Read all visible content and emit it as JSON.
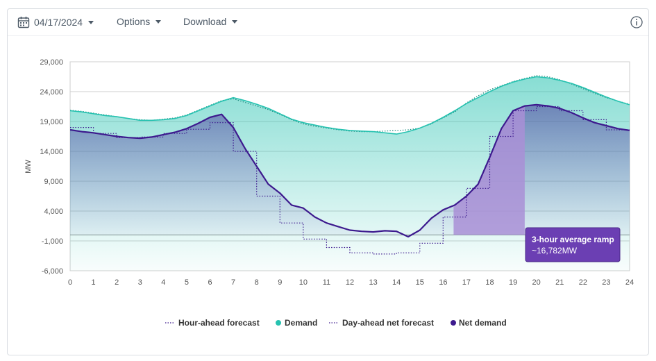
{
  "toolbar": {
    "date": "04/17/2024",
    "options_label": "Options",
    "download_label": "Download"
  },
  "colors": {
    "demand": "#26c2b0",
    "net_demand": "#3d1a8e",
    "ramp_fill": "#a98fd6",
    "tooltip_bg": "#6b3fb3"
  },
  "tooltip": {
    "title": "3-hour average ramp",
    "value": "~16,782MW"
  },
  "chart_data": {
    "type": "line",
    "xlabel": "",
    "ylabel": "MW",
    "xlim": [
      0,
      24
    ],
    "ylim": [
      -6000,
      29000
    ],
    "x_ticks": [
      "0",
      "1",
      "2",
      "3",
      "4",
      "5",
      "6",
      "7",
      "8",
      "9",
      "10",
      "11",
      "12",
      "13",
      "14",
      "15",
      "16",
      "17",
      "18",
      "19",
      "20",
      "21",
      "22",
      "23",
      "24"
    ],
    "y_ticks": [
      "29,000",
      "24,000",
      "19,000",
      "14,000",
      "9,000",
      "4,000",
      "-1,000",
      "-6,000"
    ],
    "y_tick_values": [
      29000,
      24000,
      19000,
      14000,
      9000,
      4000,
      -1000,
      -6000
    ],
    "ramp_window": [
      16.45,
      19.5
    ],
    "series": [
      {
        "name": "Demand",
        "style": "solid",
        "x": [
          0,
          0.5,
          1,
          1.5,
          2,
          2.5,
          3,
          3.5,
          4,
          4.5,
          5,
          5.5,
          6,
          6.5,
          7,
          7.5,
          8,
          8.5,
          9,
          9.5,
          10,
          10.5,
          11,
          11.5,
          12,
          12.5,
          13,
          13.5,
          14,
          14.5,
          15,
          15.5,
          16,
          16.5,
          17,
          17.5,
          18,
          18.5,
          19,
          19.5,
          20,
          20.5,
          21,
          21.5,
          22,
          22.5,
          23,
          23.5,
          24
        ],
        "values": [
          20800,
          20600,
          20300,
          20000,
          19800,
          19500,
          19200,
          19200,
          19300,
          19500,
          20000,
          20800,
          21600,
          22400,
          23000,
          22500,
          21900,
          21200,
          20300,
          19400,
          18800,
          18400,
          18000,
          17700,
          17500,
          17400,
          17300,
          17100,
          16900,
          17300,
          17900,
          18700,
          19700,
          20800,
          22000,
          23000,
          24000,
          24900,
          25600,
          26100,
          26500,
          26300,
          25900,
          25400,
          24700,
          23900,
          23100,
          22400,
          21800
        ]
      },
      {
        "name": "Hour-ahead forecast",
        "style": "dotted",
        "x": [
          0,
          0.5,
          1,
          1.5,
          2,
          2.5,
          3,
          3.5,
          4,
          4.5,
          5,
          5.5,
          6,
          6.5,
          7,
          7.5,
          8,
          8.5,
          9,
          9.5,
          10,
          10.5,
          11,
          11.5,
          12,
          12.5,
          13,
          13.5,
          14,
          14.5,
          15,
          15.5,
          16,
          16.5,
          17,
          17.5,
          18,
          18.5,
          19,
          19.5,
          20,
          20.5,
          21,
          21.5,
          22,
          22.5,
          23,
          23.5,
          24
        ],
        "values": [
          20900,
          20700,
          20400,
          20100,
          19800,
          19500,
          19300,
          19200,
          19400,
          19600,
          20100,
          20900,
          21700,
          22500,
          22800,
          22200,
          21600,
          21000,
          20200,
          19300,
          18600,
          18200,
          17900,
          17600,
          17400,
          17300,
          17300,
          17400,
          17500,
          17600,
          17900,
          18600,
          19600,
          20600,
          22100,
          23300,
          24300,
          25000,
          25700,
          26200,
          26700,
          26500,
          26000,
          25300,
          24500,
          23700,
          23000,
          22400,
          21900
        ]
      },
      {
        "name": "Net demand",
        "style": "solid",
        "x": [
          0,
          0.5,
          1,
          1.5,
          2,
          2.5,
          3,
          3.5,
          4,
          4.5,
          5,
          5.5,
          6,
          6.5,
          7,
          7.5,
          8,
          8.5,
          9,
          9.5,
          10,
          10.5,
          11,
          11.5,
          12,
          12.5,
          13,
          13.5,
          14,
          14.5,
          15,
          15.5,
          16,
          16.5,
          17,
          17.5,
          18,
          18.5,
          19,
          19.5,
          20,
          20.5,
          21,
          21.5,
          22,
          22.5,
          23,
          23.5,
          24
        ],
        "values": [
          17600,
          17300,
          17100,
          16800,
          16500,
          16300,
          16200,
          16400,
          16800,
          17200,
          17800,
          18700,
          19700,
          20200,
          18000,
          14500,
          11500,
          8500,
          7000,
          5000,
          4500,
          3000,
          2000,
          1400,
          800,
          600,
          500,
          700,
          600,
          -300,
          800,
          2800,
          4200,
          5000,
          6500,
          8500,
          13000,
          17800,
          20800,
          21600,
          21800,
          21600,
          21200,
          20500,
          19600,
          18800,
          18300,
          17800,
          17500
        ]
      },
      {
        "name": "Day-ahead net forecast",
        "style": "dotted",
        "x": [
          0,
          1,
          1,
          2,
          2,
          3,
          3,
          4,
          4,
          5,
          5,
          6,
          6,
          7,
          7,
          8,
          8,
          9,
          9,
          10,
          10,
          11,
          11,
          12,
          12,
          13,
          13,
          14,
          14,
          15,
          15,
          16,
          16,
          17,
          17,
          18,
          18,
          19,
          19,
          20,
          20,
          21,
          21,
          22,
          22,
          23,
          23,
          24
        ],
        "values": [
          18000,
          18000,
          17000,
          17000,
          16300,
          16300,
          16400,
          16400,
          17000,
          17000,
          17700,
          17700,
          18800,
          18800,
          14000,
          14000,
          6500,
          6500,
          2000,
          2000,
          -700,
          -700,
          -2100,
          -2100,
          -3000,
          -3000,
          -3200,
          -3200,
          -3000,
          -3000,
          -1400,
          -1400,
          3000,
          3000,
          7800,
          7800,
          16500,
          16500,
          20800,
          20800,
          21500,
          21500,
          20800,
          20800,
          19300,
          19300,
          17600,
          17600
        ]
      }
    ]
  },
  "legend": [
    {
      "label": "Hour-ahead forecast",
      "marker": "dotted-line"
    },
    {
      "label": "Demand",
      "marker": "dot"
    },
    {
      "label": "Day-ahead net forecast",
      "marker": "dotted-line"
    },
    {
      "label": "Net demand",
      "marker": "dot"
    }
  ]
}
